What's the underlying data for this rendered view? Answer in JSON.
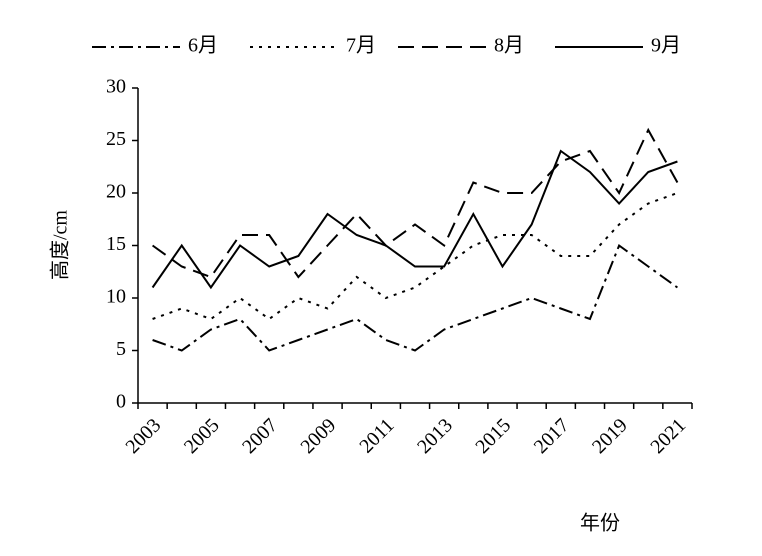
{
  "chart_data": {
    "type": "line",
    "categories": [
      "2003",
      null,
      "2005",
      null,
      "2007",
      null,
      "2009",
      null,
      "2011",
      null,
      "2013",
      null,
      "2015",
      null,
      "2017",
      null,
      "2019",
      null,
      "2021"
    ],
    "series": [
      {
        "name": "6月",
        "color": "#000000",
        "dash": "dash-dot",
        "values": [
          6,
          5,
          7,
          8,
          5,
          6,
          7,
          8,
          6,
          5,
          7,
          8,
          9,
          10,
          9,
          8,
          15,
          13,
          11
        ]
      },
      {
        "name": "7月",
        "color": "#000000",
        "dash": "dotted",
        "values": [
          8,
          9,
          8,
          10,
          8,
          10,
          9,
          12,
          10,
          11,
          13,
          15,
          16,
          16,
          14,
          14,
          17,
          19,
          20
        ]
      },
      {
        "name": "8月",
        "color": "#000000",
        "dash": "dashed",
        "values": [
          15,
          13,
          12,
          16,
          16,
          12,
          15,
          18,
          15,
          17,
          15,
          21,
          20,
          20,
          23,
          24,
          20,
          26,
          21
        ]
      },
      {
        "name": "9月",
        "color": "#000000",
        "dash": "solid",
        "values": [
          11,
          15,
          11,
          15,
          13,
          14,
          18,
          16,
          15,
          13,
          13,
          18,
          13,
          17,
          24,
          22,
          19,
          22,
          23
        ]
      }
    ],
    "ylim": [
      0,
      30
    ],
    "yticks": [
      0,
      5,
      10,
      15,
      20,
      25,
      30
    ],
    "ylabel": "高度/cm",
    "xlabel": "年份",
    "legend": "top"
  }
}
